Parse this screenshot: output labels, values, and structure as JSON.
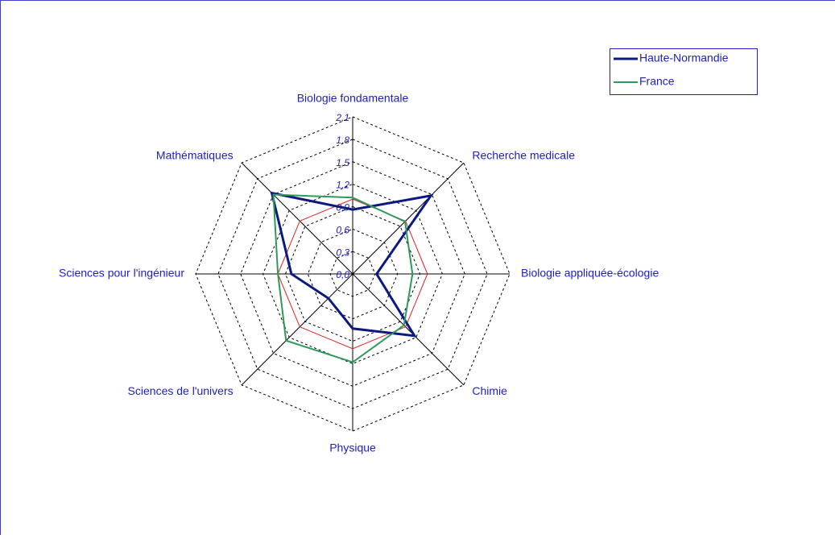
{
  "chart_data": {
    "type": "radar",
    "categories": [
      "Biologie fondamentale",
      "Recherche medicale",
      "Biologie appliquée-écologie",
      "Chimie",
      "Physique",
      "Sciences de l'univers",
      "Sciences pour l'ingénieur",
      "Mathématiques"
    ],
    "series": [
      {
        "name": "Haute-Normandie",
        "color": "#0a1a80",
        "values": [
          0.86,
          1.48,
          0.32,
          1.17,
          0.73,
          0.46,
          0.82,
          1.53
        ]
      },
      {
        "name": "France",
        "color": "#2e9a5a",
        "values": [
          1.02,
          0.99,
          0.8,
          0.97,
          1.18,
          1.26,
          1.0,
          1.5
        ]
      }
    ],
    "reference_value": 1,
    "reference_color": "#e02020",
    "ylim": [
      0,
      2.1
    ],
    "yticks": [
      {
        "value": 0,
        "label": "0,0"
      },
      {
        "value": 0.3,
        "label": "0,3"
      },
      {
        "value": 0.6,
        "label": "0,6"
      },
      {
        "value": 0.9,
        "label": "0,9"
      },
      {
        "value": 1.2,
        "label": "1,2"
      },
      {
        "value": 1.5,
        "label": "1,5"
      },
      {
        "value": 1.8,
        "label": "1,8"
      },
      {
        "value": 2.1,
        "label": "2,1"
      }
    ],
    "grid": true,
    "legend": "upper right"
  }
}
